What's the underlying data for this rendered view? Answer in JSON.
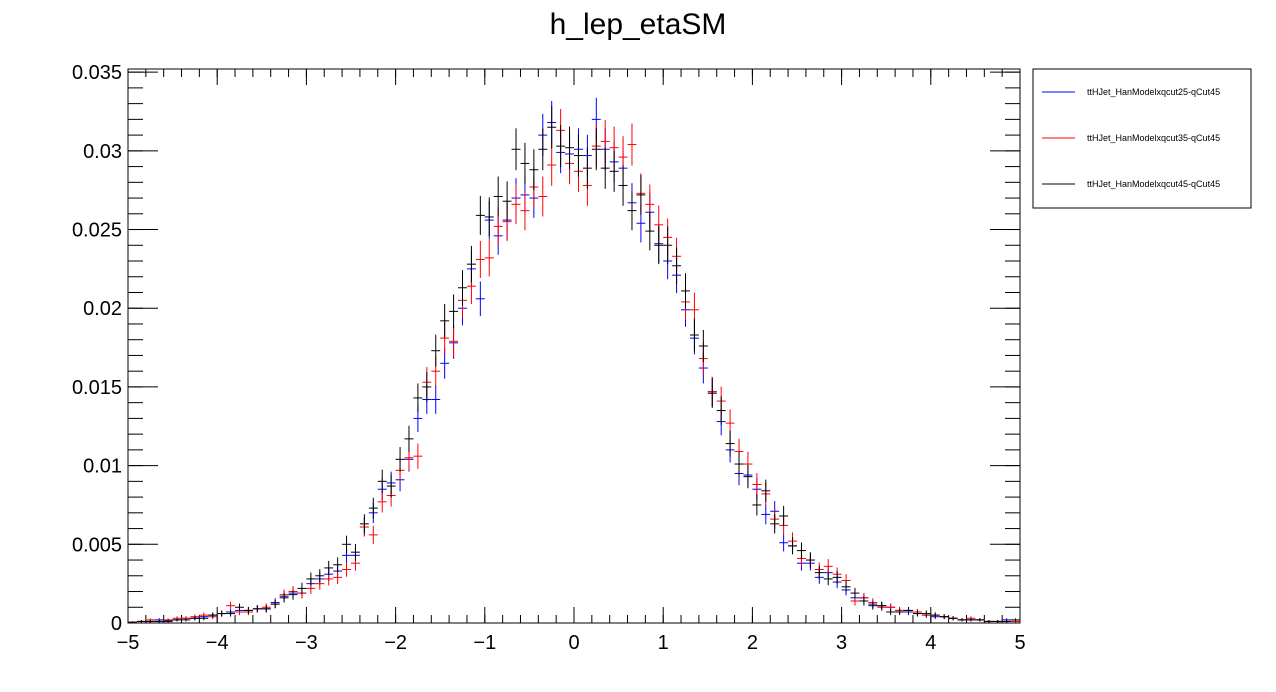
{
  "chart_data": {
    "type": "scatter",
    "title": "h_lep_etaSM",
    "xlabel": "",
    "ylabel": "",
    "xlim": [
      -5,
      5
    ],
    "ylim": [
      0,
      0.0352
    ],
    "x_ticks": [
      -5,
      -4,
      -3,
      -2,
      -1,
      0,
      1,
      2,
      3,
      4,
      5
    ],
    "x_tick_labels": [
      "−5",
      "−4",
      "−3",
      "−2",
      "−1",
      "0",
      "1",
      "2",
      "3",
      "4",
      "5"
    ],
    "y_ticks": [
      0,
      0.005,
      0.01,
      0.015,
      0.02,
      0.025,
      0.03,
      0.035
    ],
    "y_tick_labels": [
      "0",
      "0.005",
      "0.01",
      "0.015",
      "0.02",
      "0.025",
      "0.03",
      "0.035"
    ],
    "legend_position": "top-right, outside plot area",
    "bin_width": 0.1,
    "x": [
      -4.95,
      -4.85,
      -4.75,
      -4.65,
      -4.55,
      -4.45,
      -4.35,
      -4.25,
      -4.15,
      -4.05,
      -3.95,
      -3.85,
      -3.75,
      -3.65,
      -3.55,
      -3.45,
      -3.35,
      -3.25,
      -3.15,
      -3.05,
      -2.95,
      -2.85,
      -2.75,
      -2.65,
      -2.55,
      -2.45,
      -2.35,
      -2.25,
      -2.15,
      -2.05,
      -1.95,
      -1.85,
      -1.75,
      -1.65,
      -1.55,
      -1.45,
      -1.35,
      -1.25,
      -1.15,
      -1.05,
      -0.95,
      -0.85,
      -0.75,
      -0.65,
      -0.55,
      -0.45,
      -0.35,
      -0.25,
      -0.15,
      -0.05,
      0.05,
      0.15,
      0.25,
      0.35,
      0.45,
      0.55,
      0.65,
      0.75,
      0.85,
      0.95,
      1.05,
      1.15,
      1.25,
      1.35,
      1.45,
      1.55,
      1.65,
      1.75,
      1.85,
      1.95,
      2.05,
      2.15,
      2.25,
      2.35,
      2.45,
      2.55,
      2.65,
      2.75,
      2.85,
      2.95,
      3.05,
      3.15,
      3.25,
      3.35,
      3.45,
      3.55,
      3.65,
      3.75,
      3.85,
      3.95,
      4.05,
      4.15,
      4.25,
      4.35,
      4.45,
      4.55,
      4.65,
      4.75,
      4.85,
      4.95
    ],
    "series": [
      {
        "name": "ttHJet_HanModelxqcut25-qCut45",
        "color": "#0000ff",
        "values": [
          5e-05,
          0.0001,
          0.0001,
          0.0002,
          0.00015,
          0.0002,
          0.0003,
          0.0003,
          0.0004,
          0.0005,
          0.0006,
          0.0007,
          0.0008,
          0.0008,
          0.0009,
          0.0009,
          0.0013,
          0.0017,
          0.0019,
          0.0019,
          0.0025,
          0.0028,
          0.0031,
          0.0033,
          0.0043,
          0.0043,
          0.0061,
          0.007,
          0.0085,
          0.0089,
          0.0091,
          0.0104,
          0.013,
          0.0142,
          0.0142,
          0.0165,
          0.0178,
          0.02,
          0.0225,
          0.0206,
          0.0256,
          0.0246,
          0.0256,
          0.027,
          0.0272,
          0.027,
          0.031,
          0.0318,
          0.0299,
          0.0298,
          0.0301,
          0.0297,
          0.032,
          0.0301,
          0.0293,
          0.0289,
          0.0267,
          0.0254,
          0.0261,
          0.0241,
          0.023,
          0.0221,
          0.0199,
          0.0181,
          0.0162,
          0.0147,
          0.0128,
          0.011,
          0.0095,
          0.0094,
          0.0085,
          0.0069,
          0.0071,
          0.0051,
          0.0049,
          0.0038,
          0.0038,
          0.0029,
          0.0032,
          0.0026,
          0.0021,
          0.0016,
          0.0016,
          0.0012,
          0.0011,
          0.001,
          0.0008,
          0.0007,
          0.0006,
          0.0005,
          0.0004,
          0.0004,
          0.0003,
          0.0002,
          0.0002,
          0.0002,
          0.0001,
          0.0001,
          0.0002,
          0.0001
        ],
        "errors": [
          5e-05,
          8e-05,
          8e-05,
          0.0001,
          0.0001,
          0.0001,
          0.00013,
          0.00013,
          0.00015,
          0.00017,
          0.00019,
          0.0002,
          0.00022,
          0.00022,
          0.00023,
          0.00023,
          0.00028,
          0.00032,
          0.00034,
          0.00034,
          0.00039,
          0.00041,
          0.00043,
          0.00045,
          0.0005,
          0.0005,
          0.0006,
          0.00065,
          0.0007,
          0.00072,
          0.00073,
          0.00078,
          0.00087,
          0.00091,
          0.00091,
          0.00098,
          0.00102,
          0.00108,
          0.00115,
          0.0011,
          0.00122,
          0.0012,
          0.00122,
          0.00126,
          0.00126,
          0.00126,
          0.00135,
          0.00137,
          0.00132,
          0.00132,
          0.00133,
          0.00132,
          0.00137,
          0.00133,
          0.00131,
          0.0013,
          0.00125,
          0.00122,
          0.00124,
          0.00119,
          0.00116,
          0.00114,
          0.00108,
          0.00103,
          0.00098,
          0.00093,
          0.00087,
          0.0008,
          0.00075,
          0.00074,
          0.0007,
          0.00063,
          0.00065,
          0.00055,
          0.00053,
          0.00047,
          0.00047,
          0.00041,
          0.00043,
          0.00039,
          0.00035,
          0.0003,
          0.0003,
          0.00026,
          0.00025,
          0.00024,
          0.00022,
          0.0002,
          0.00018,
          0.00017,
          0.00015,
          0.00015,
          0.00013,
          0.0001,
          0.0001,
          0.0001,
          8e-05,
          8e-05,
          0.0001,
          8e-05
        ]
      },
      {
        "name": "ttHJet_HanModelxqcut35-qCut45",
        "color": "#ff0000",
        "values": [
          5e-05,
          0.0001,
          0.0002,
          0.0001,
          0.0002,
          0.0003,
          0.0003,
          0.0004,
          0.0005,
          0.0004,
          0.0006,
          0.0011,
          0.0007,
          0.0007,
          0.0009,
          0.001,
          0.0012,
          0.0018,
          0.002,
          0.0019,
          0.0022,
          0.0025,
          0.0028,
          0.0029,
          0.0034,
          0.0038,
          0.0061,
          0.0056,
          0.0077,
          0.0081,
          0.0097,
          0.0105,
          0.0106,
          0.0153,
          0.016,
          0.0181,
          0.0179,
          0.0205,
          0.0214,
          0.0231,
          0.0232,
          0.0252,
          0.0255,
          0.0266,
          0.0262,
          0.0277,
          0.0271,
          0.0291,
          0.0313,
          0.0292,
          0.0287,
          0.0278,
          0.0303,
          0.0306,
          0.0302,
          0.0296,
          0.0304,
          0.0273,
          0.0266,
          0.0253,
          0.0245,
          0.0233,
          0.0204,
          0.0199,
          0.0168,
          0.0147,
          0.0141,
          0.0127,
          0.0109,
          0.0101,
          0.0088,
          0.0082,
          0.0066,
          0.0062,
          0.0052,
          0.0041,
          0.004,
          0.0034,
          0.0036,
          0.0031,
          0.0027,
          0.0014,
          0.0016,
          0.0013,
          0.001,
          0.001,
          0.0008,
          0.0008,
          0.0007,
          0.0005,
          0.0005,
          0.0004,
          0.0003,
          0.0002,
          0.0003,
          0.0002,
          0.0001,
          0.0001,
          0.0001,
          0.0001
        ],
        "errors": [
          5e-05,
          8e-05,
          0.0001,
          8e-05,
          0.0001,
          0.00013,
          0.00013,
          0.00015,
          0.00017,
          0.00015,
          0.00019,
          0.00025,
          0.0002,
          0.0002,
          0.00023,
          0.00024,
          0.00026,
          0.00033,
          0.00035,
          0.00034,
          0.00036,
          0.00039,
          0.00041,
          0.00042,
          0.00046,
          0.00048,
          0.0006,
          0.00058,
          0.00068,
          0.0007,
          0.00076,
          0.00079,
          0.0008,
          0.00096,
          0.00098,
          0.00104,
          0.00104,
          0.00111,
          0.00113,
          0.00118,
          0.00118,
          0.00122,
          0.00123,
          0.00126,
          0.00125,
          0.00128,
          0.00127,
          0.00132,
          0.00136,
          0.00132,
          0.00131,
          0.00129,
          0.00134,
          0.00135,
          0.00134,
          0.00133,
          0.00134,
          0.00127,
          0.00126,
          0.00122,
          0.0012,
          0.00118,
          0.0011,
          0.00109,
          0.001,
          0.00094,
          0.00092,
          0.00087,
          0.00081,
          0.00078,
          0.00073,
          0.0007,
          0.00063,
          0.00061,
          0.00056,
          0.0005,
          0.00049,
          0.00045,
          0.00046,
          0.00043,
          0.0004,
          0.00029,
          0.0003,
          0.00028,
          0.00024,
          0.00024,
          0.00022,
          0.00022,
          0.00019,
          0.00017,
          0.00017,
          0.00015,
          0.00013,
          0.0001,
          0.00013,
          0.0001,
          8e-05,
          8e-05,
          8e-05,
          8e-05
        ]
      },
      {
        "name": "ttHJet_HanModelxqcut45-qCut45",
        "color": "#000000",
        "values": [
          5e-05,
          0.0001,
          0.0001,
          0.0001,
          0.0001,
          0.0002,
          0.0002,
          0.0003,
          0.0003,
          0.0005,
          0.0006,
          0.0006,
          0.001,
          0.0008,
          0.0009,
          0.0009,
          0.0012,
          0.0016,
          0.0018,
          0.0022,
          0.0028,
          0.003,
          0.0035,
          0.0037,
          0.005,
          0.0045,
          0.0063,
          0.0073,
          0.009,
          0.0087,
          0.0104,
          0.0117,
          0.0143,
          0.015,
          0.0173,
          0.0192,
          0.0198,
          0.0213,
          0.0228,
          0.0259,
          0.0258,
          0.0271,
          0.0268,
          0.0301,
          0.0292,
          0.0288,
          0.0301,
          0.0315,
          0.0303,
          0.0302,
          0.0297,
          0.0289,
          0.0301,
          0.0289,
          0.0287,
          0.0278,
          0.0262,
          0.0272,
          0.0249,
          0.024,
          0.024,
          0.0227,
          0.0211,
          0.0183,
          0.0176,
          0.0146,
          0.0135,
          0.0114,
          0.0101,
          0.0093,
          0.0075,
          0.0084,
          0.0063,
          0.0068,
          0.0049,
          0.0046,
          0.004,
          0.0032,
          0.0028,
          0.0029,
          0.0023,
          0.0019,
          0.0014,
          0.0011,
          0.0011,
          0.0007,
          0.0007,
          0.0008,
          0.0006,
          0.0006,
          0.0005,
          0.0004,
          0.0003,
          0.0002,
          0.0002,
          0.0002,
          0.0001,
          0.0001,
          0.0001,
          0.0002
        ],
        "errors": [
          5e-05,
          8e-05,
          8e-05,
          8e-05,
          8e-05,
          0.0001,
          0.0001,
          0.00013,
          0.00013,
          0.00017,
          0.00019,
          0.00019,
          0.00024,
          0.00022,
          0.00023,
          0.00023,
          0.00026,
          0.0003,
          0.00032,
          0.00036,
          0.00041,
          0.00042,
          0.00045,
          0.00047,
          0.00055,
          0.00052,
          0.00061,
          0.00066,
          0.00074,
          0.00072,
          0.00078,
          0.00083,
          0.00092,
          0.00095,
          0.00102,
          0.00107,
          0.00108,
          0.00112,
          0.00116,
          0.00124,
          0.00124,
          0.00127,
          0.00126,
          0.00133,
          0.00131,
          0.0013,
          0.00133,
          0.00136,
          0.00134,
          0.00134,
          0.00133,
          0.00131,
          0.00133,
          0.00131,
          0.0013,
          0.00129,
          0.00125,
          0.00127,
          0.00122,
          0.0012,
          0.0012,
          0.00116,
          0.00112,
          0.00104,
          0.00102,
          0.00093,
          0.0009,
          0.00082,
          0.00078,
          0.00074,
          0.00067,
          0.00071,
          0.00061,
          0.00064,
          0.00054,
          0.00052,
          0.00049,
          0.00043,
          0.0004,
          0.00041,
          0.00037,
          0.00033,
          0.00029,
          0.00025,
          0.00025,
          0.0002,
          0.0002,
          0.00022,
          0.00019,
          0.00019,
          0.00017,
          0.00015,
          0.00013,
          0.0001,
          0.0001,
          0.0001,
          8e-05,
          8e-05,
          8e-05,
          0.0001
        ]
      }
    ]
  }
}
